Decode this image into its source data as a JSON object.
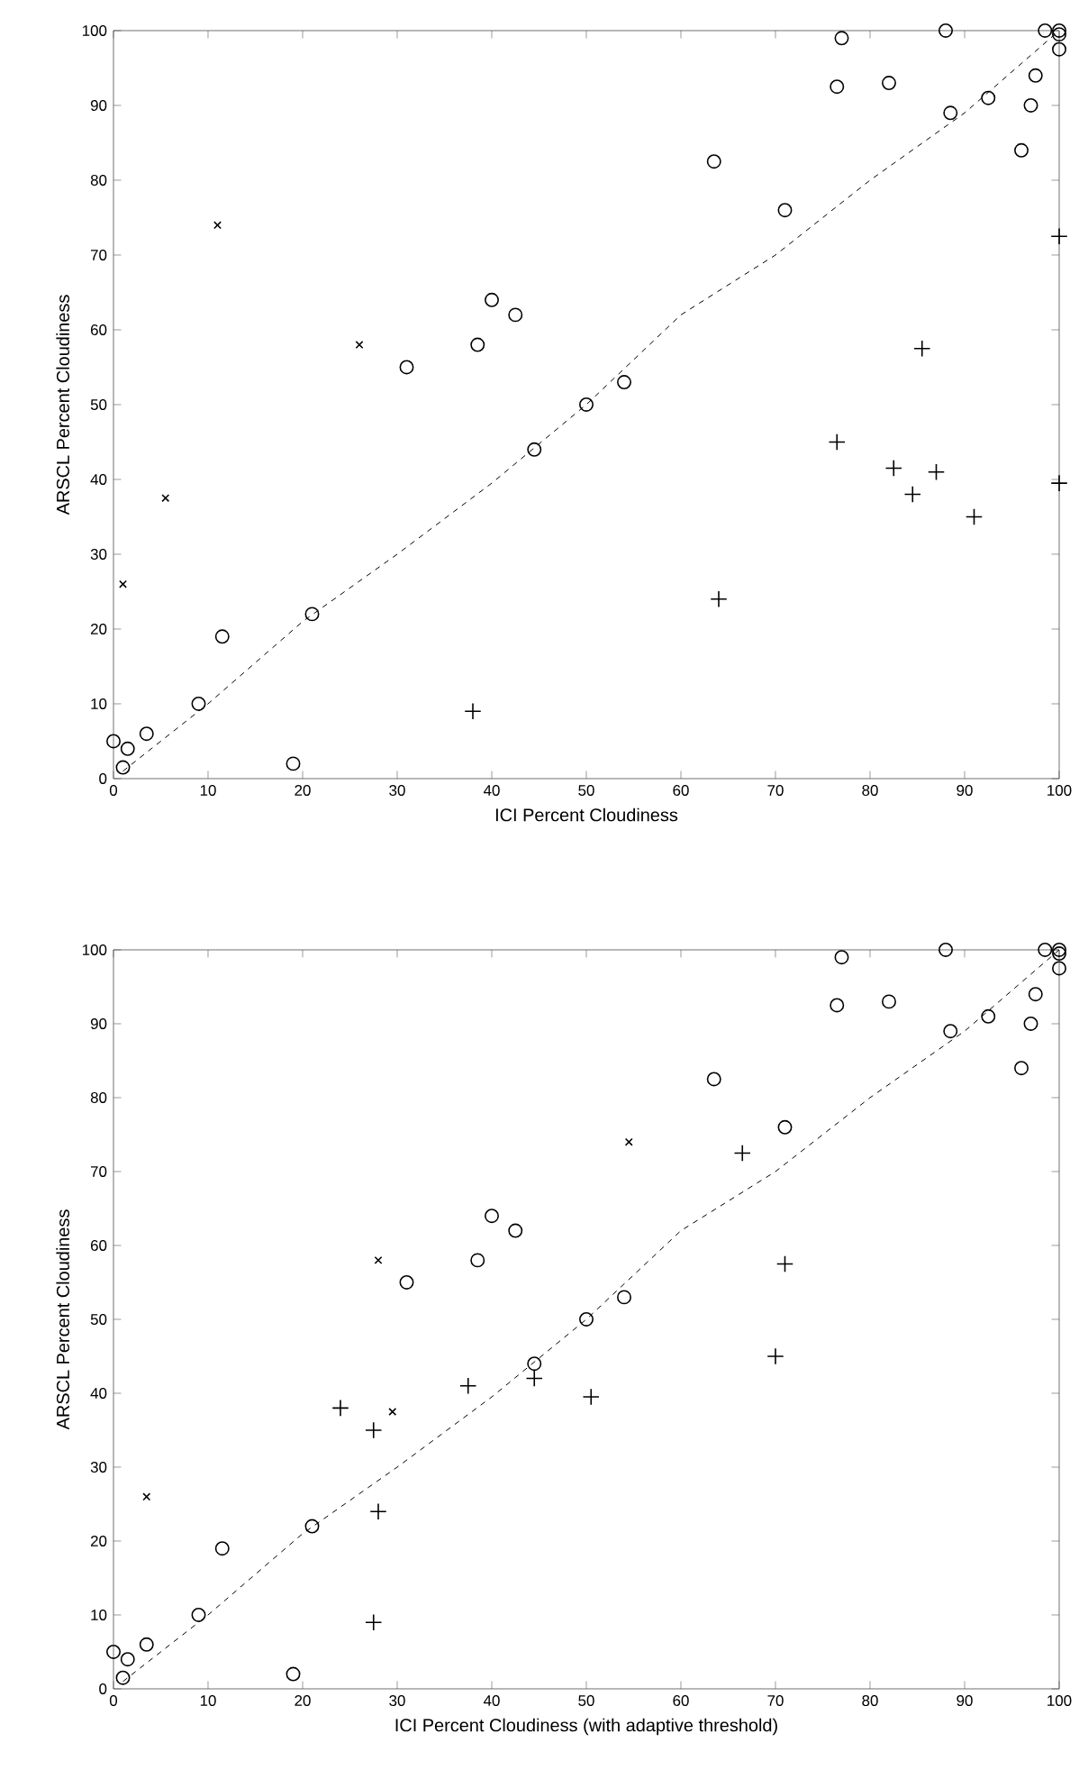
{
  "chart_data": [
    {
      "type": "scatter",
      "xlabel": "ICI Percent Cloudiness",
      "ylabel": "ARSCL Percent Cloudiness",
      "xlim": [
        0,
        100
      ],
      "ylim": [
        0,
        100
      ],
      "xticks": [
        0,
        10,
        20,
        30,
        40,
        50,
        60,
        70,
        80,
        90,
        100
      ],
      "yticks": [
        0,
        10,
        20,
        30,
        40,
        50,
        60,
        70,
        80,
        90,
        100
      ],
      "series": [
        {
          "type": "scatter",
          "marker": "circle",
          "color": "#000000",
          "x": [
            0,
            1,
            1.5,
            3.5,
            9,
            11.5,
            19,
            21,
            31,
            38.5,
            40,
            42.5,
            44.5,
            50,
            54,
            63.5,
            71,
            76.5,
            77,
            82,
            88,
            88.5,
            92.5,
            96,
            97,
            97.5,
            98.5,
            100,
            100,
            100
          ],
          "values": [
            5,
            1.5,
            4,
            6,
            10,
            19,
            2,
            22,
            55,
            58,
            64,
            62,
            44,
            50,
            53,
            82.5,
            76,
            92.5,
            99,
            93,
            100,
            89,
            91,
            84,
            90,
            94,
            100,
            100,
            99.5,
            97.5
          ]
        },
        {
          "type": "scatter",
          "marker": "x",
          "color": "#000000",
          "x": [
            1,
            5.5,
            11,
            26
          ],
          "values": [
            26,
            37.5,
            74,
            58
          ]
        },
        {
          "type": "scatter",
          "marker": "cross",
          "color": "#000000",
          "x": [
            38,
            64,
            76.5,
            82.5,
            84.5,
            85.5,
            87,
            91,
            100,
            100
          ],
          "values": [
            9,
            24,
            45,
            41.5,
            38,
            57.5,
            41,
            35,
            72.5,
            39.5
          ]
        },
        {
          "type": "line",
          "marker": "none",
          "line_style": "dashed",
          "color": "#000000",
          "x": [
            1,
            10,
            20,
            30,
            40,
            50,
            60,
            70,
            80,
            90,
            100
          ],
          "values": [
            1,
            10,
            21,
            30,
            39.5,
            50,
            62,
            70,
            80,
            89,
            100
          ]
        }
      ]
    },
    {
      "type": "scatter",
      "xlabel": "ICI Percent Cloudiness (with adaptive threshold)",
      "ylabel": "ARSCL Percent Cloudiness",
      "xlim": [
        0,
        100
      ],
      "ylim": [
        0,
        100
      ],
      "xticks": [
        0,
        10,
        20,
        30,
        40,
        50,
        60,
        70,
        80,
        90,
        100
      ],
      "yticks": [
        0,
        10,
        20,
        30,
        40,
        50,
        60,
        70,
        80,
        90,
        100
      ],
      "series": [
        {
          "type": "scatter",
          "marker": "circle",
          "color": "#000000",
          "x": [
            0,
            1,
            1.5,
            3.5,
            9,
            11.5,
            19,
            21,
            31,
            38.5,
            40,
            42.5,
            44.5,
            50,
            54,
            63.5,
            71,
            76.5,
            77,
            82,
            88,
            88.5,
            92.5,
            96,
            97,
            97.5,
            98.5,
            100,
            100,
            100
          ],
          "values": [
            5,
            1.5,
            4,
            6,
            10,
            19,
            2,
            22,
            55,
            58,
            64,
            62,
            44,
            50,
            53,
            82.5,
            76,
            92.5,
            99,
            93,
            100,
            89,
            91,
            84,
            90,
            94,
            100,
            100,
            99.5,
            97.5
          ]
        },
        {
          "type": "scatter",
          "marker": "x",
          "color": "#000000",
          "x": [
            3.5,
            28,
            29.5,
            54.5
          ],
          "values": [
            26,
            58,
            37.5,
            74
          ]
        },
        {
          "type": "scatter",
          "marker": "cross",
          "color": "#000000",
          "x": [
            24,
            27.5,
            27.5,
            28,
            37.5,
            44.5,
            50.5,
            66.5,
            70,
            71
          ],
          "values": [
            38,
            35,
            9,
            24,
            41,
            42,
            39.5,
            72.5,
            45,
            57.5
          ]
        },
        {
          "type": "line",
          "marker": "none",
          "line_style": "dashed",
          "color": "#000000",
          "x": [
            1,
            10,
            20,
            30,
            40,
            50,
            60,
            70,
            80,
            90,
            100
          ],
          "values": [
            1,
            10,
            21,
            30,
            39.5,
            50,
            62,
            70,
            80,
            89,
            100
          ]
        }
      ]
    }
  ]
}
